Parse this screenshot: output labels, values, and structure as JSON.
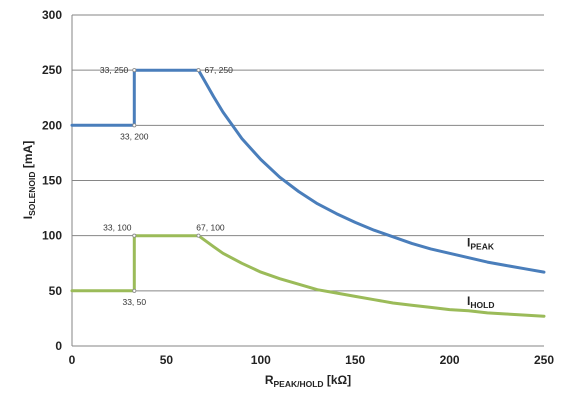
{
  "chart_data": {
    "type": "line",
    "xlabel": {
      "main": "R",
      "sub": "PEAK/HOLD",
      "unit": " [kΩ]"
    },
    "ylabel": {
      "main": "I",
      "sub": "SOLENOID",
      "unit": " [mA]"
    },
    "xlim": [
      0,
      250
    ],
    "ylim": [
      0,
      300
    ],
    "x_ticks": [
      "0",
      "50",
      "100",
      "150",
      "200",
      "250"
    ],
    "y_ticks": [
      "0",
      "50",
      "100",
      "150",
      "200",
      "250",
      "300"
    ],
    "grid": {
      "horizontal": true,
      "vertical": false
    },
    "series": [
      {
        "name": "I_PEAK",
        "label_main": "I",
        "label_sub": "PEAK",
        "color": "#4a7ebb",
        "points": [
          [
            0,
            200
          ],
          [
            33,
            200
          ],
          [
            33,
            250
          ],
          [
            67,
            250
          ],
          [
            70,
            241
          ],
          [
            75,
            226
          ],
          [
            80,
            212
          ],
          [
            90,
            188
          ],
          [
            100,
            169
          ],
          [
            110,
            153
          ],
          [
            120,
            140
          ],
          [
            130,
            129
          ],
          [
            140,
            120
          ],
          [
            150,
            112
          ],
          [
            160,
            105
          ],
          [
            170,
            99
          ],
          [
            180,
            93
          ],
          [
            190,
            88
          ],
          [
            200,
            84
          ],
          [
            210,
            80
          ],
          [
            220,
            76
          ],
          [
            230,
            73
          ],
          [
            240,
            70
          ],
          [
            250,
            67
          ]
        ]
      },
      {
        "name": "I_HOLD",
        "label_main": "I",
        "label_sub": "HOLD",
        "color": "#9bbb59",
        "points": [
          [
            0,
            50
          ],
          [
            33,
            50
          ],
          [
            33,
            100
          ],
          [
            67,
            100
          ],
          [
            75,
            90
          ],
          [
            80,
            84
          ],
          [
            90,
            75
          ],
          [
            100,
            67
          ],
          [
            110,
            61
          ],
          [
            120,
            56
          ],
          [
            130,
            51
          ],
          [
            140,
            48
          ],
          [
            150,
            45
          ],
          [
            160,
            42
          ],
          [
            170,
            39
          ],
          [
            180,
            37
          ],
          [
            190,
            35
          ],
          [
            200,
            33
          ],
          [
            210,
            32
          ],
          [
            220,
            30
          ],
          [
            230,
            29
          ],
          [
            240,
            28
          ],
          [
            250,
            27
          ]
        ]
      }
    ],
    "annotations": [
      {
        "text": "33, 250",
        "x": 33,
        "y": 250,
        "placement": "left"
      },
      {
        "text": "67, 250",
        "x": 67,
        "y": 250,
        "placement": "right"
      },
      {
        "text": "33, 200",
        "x": 33,
        "y": 200,
        "placement": "below"
      },
      {
        "text": "33, 100",
        "x": 33,
        "y": 100,
        "placement": "above-left"
      },
      {
        "text": "67, 100",
        "x": 67,
        "y": 100,
        "placement": "above"
      },
      {
        "text": "33, 50",
        "x": 33,
        "y": 50,
        "placement": "below"
      }
    ],
    "series_label_positions": [
      {
        "series": 0,
        "x": 205,
        "y": 103
      },
      {
        "series": 1,
        "x": 205,
        "y": 50
      }
    ]
  }
}
